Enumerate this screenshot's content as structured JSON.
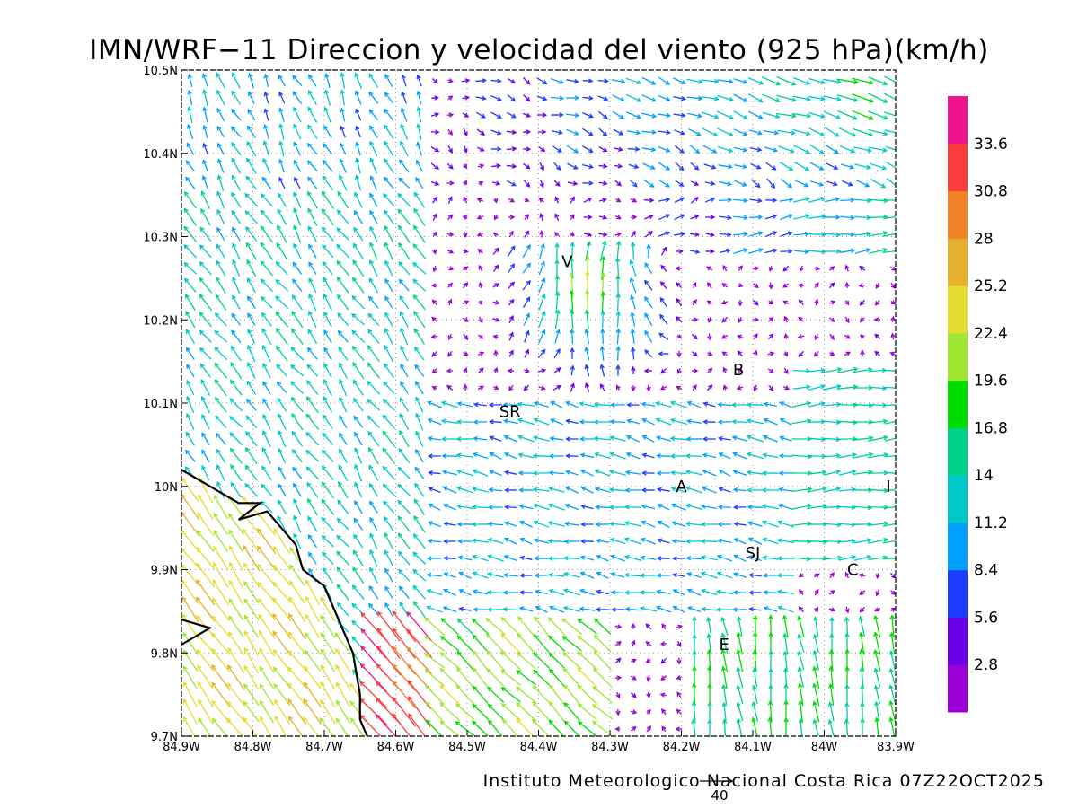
{
  "title": "IMN/WRF−11 Direccion y velocidad del viento (925 hPa)(km/h)",
  "footer": "Instituto Meteorologico Nacional Costa Rica 07Z22OCT2025",
  "reference_vector_label": "40",
  "colorbar": {
    "labels": [
      "2.8",
      "5.6",
      "8.4",
      "11.2",
      "14",
      "16.8",
      "19.6",
      "22.4",
      "25.2",
      "28",
      "30.8",
      "33.6"
    ],
    "colors": [
      "#9b00d8",
      "#6a00e8",
      "#1e3cff",
      "#00a0ff",
      "#00c8c8",
      "#00d28c",
      "#00dc00",
      "#a0e632",
      "#e6dc32",
      "#e6af2d",
      "#f08228",
      "#fa3c3c",
      "#f0148c"
    ]
  },
  "chart_data": {
    "type": "wind-vector-map",
    "x_ticks": [
      "84.9W",
      "84.8W",
      "84.7W",
      "84.6W",
      "84.5W",
      "84.4W",
      "84.3W",
      "84.2W",
      "84.1W",
      "84W",
      "83.9W"
    ],
    "y_ticks": [
      "9.7N",
      "9.8N",
      "9.9N",
      "10N",
      "10.1N",
      "10.2N",
      "10.3N",
      "10.4N",
      "10.5N"
    ],
    "xlim_lon": [
      -84.9,
      -83.9
    ],
    "ylim_lat": [
      9.7,
      10.5
    ],
    "grid": "dotted",
    "cities": [
      {
        "label": "V",
        "lon": -84.36,
        "lat": 10.27
      },
      {
        "label": "B",
        "lon": -84.12,
        "lat": 10.14
      },
      {
        "label": "SR",
        "lon": -84.44,
        "lat": 10.09
      },
      {
        "label": "A",
        "lon": -84.2,
        "lat": 10.0
      },
      {
        "label": "I",
        "lon": -83.91,
        "lat": 10.0
      },
      {
        "label": "SJ",
        "lon": -84.1,
        "lat": 9.92
      },
      {
        "label": "C",
        "lon": -83.96,
        "lat": 9.9
      },
      {
        "label": "E",
        "lon": -84.14,
        "lat": 9.81
      }
    ],
    "coastline": [
      [
        -84.9,
        10.02
      ],
      [
        -84.82,
        9.98
      ],
      [
        -84.79,
        9.98
      ],
      [
        -84.82,
        9.96
      ],
      [
        -84.78,
        9.97
      ],
      [
        -84.74,
        9.93
      ],
      [
        -84.73,
        9.9
      ],
      [
        -84.7,
        9.88
      ],
      [
        -84.66,
        9.8
      ],
      [
        -84.65,
        9.75
      ],
      [
        -84.65,
        9.72
      ],
      [
        -84.64,
        9.7
      ]
    ],
    "coastline_south": [
      [
        -84.9,
        9.81
      ],
      [
        -84.86,
        9.83
      ],
      [
        -84.9,
        9.84
      ]
    ]
  }
}
